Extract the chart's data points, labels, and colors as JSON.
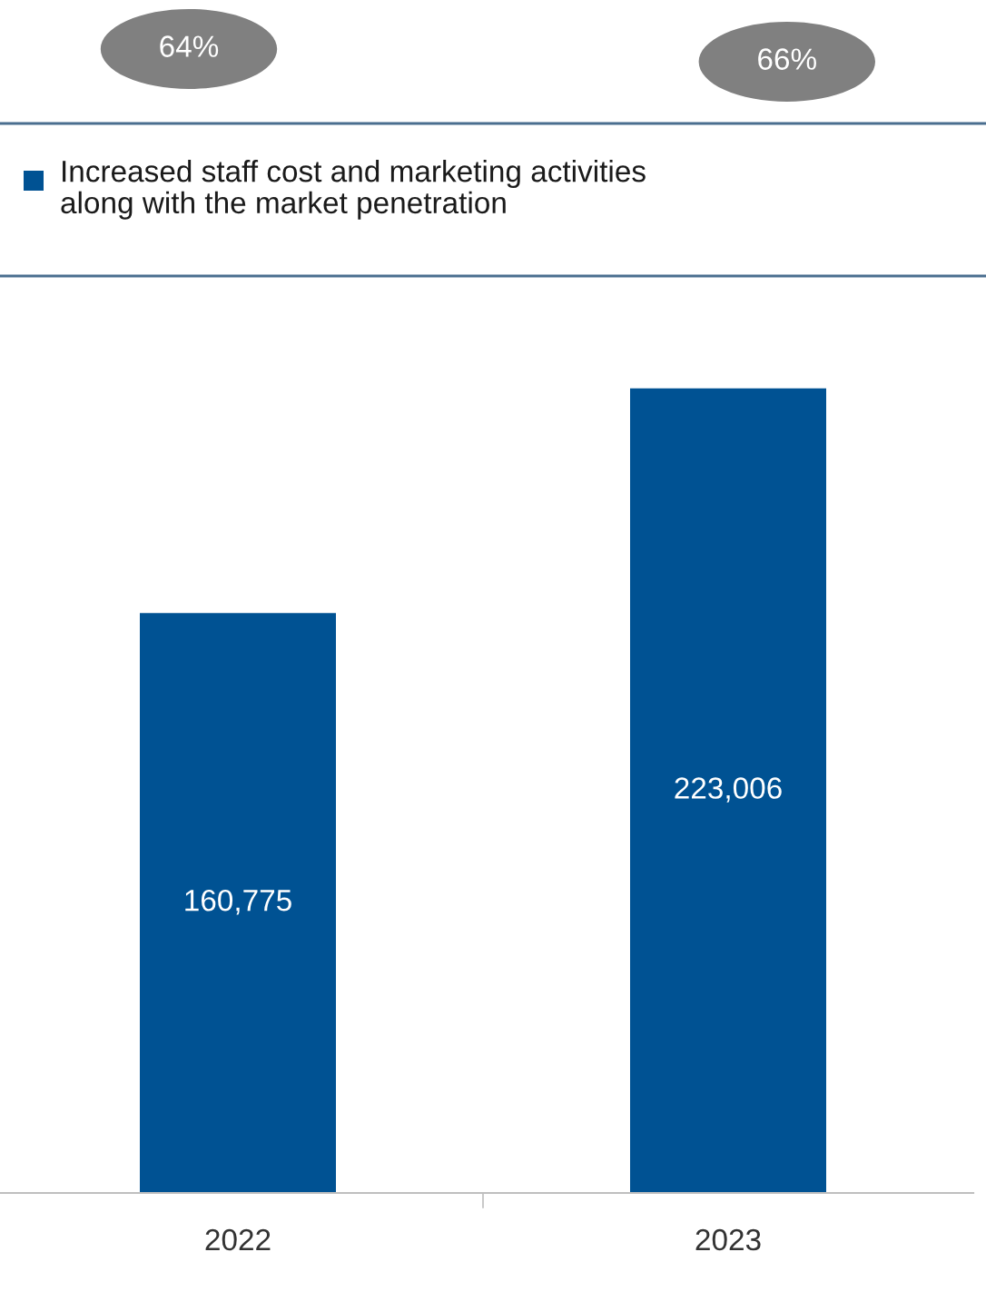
{
  "chart_data": {
    "type": "bar",
    "categories": [
      "2022",
      "2023"
    ],
    "values": [
      160775,
      223006
    ],
    "color": "#005293",
    "data_labels": true,
    "value_labels": [
      "160,775",
      "223,006"
    ],
    "annotations": [
      "64%",
      "66%",
      "Increased staff cost and marketing activities\nalong with the market penetration"
    ],
    "grid": false,
    "legend": false
  }
}
